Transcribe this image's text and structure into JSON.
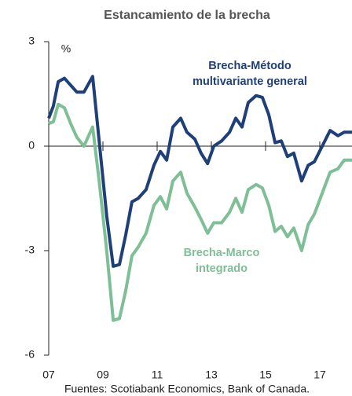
{
  "chart_data": {
    "type": "line",
    "title": "Estancamiento de la brecha",
    "y_unit": "%",
    "source": "Fuentes: Scotiabank Economics, Bank of Canada.",
    "x": [
      2007.0,
      2007.17,
      2007.35,
      2007.58,
      2007.81,
      2008.04,
      2008.3,
      2008.62,
      2008.86,
      2009.14,
      2009.38,
      2009.61,
      2009.84,
      2010.07,
      2010.3,
      2010.59,
      2010.88,
      2011.12,
      2011.35,
      2011.58,
      2011.87,
      2012.1,
      2012.39,
      2012.62,
      2012.86,
      2013.09,
      2013.38,
      2013.67,
      2013.9,
      2014.13,
      2014.36,
      2014.65,
      2014.88,
      2015.12,
      2015.35,
      2015.58,
      2015.81,
      2016.04,
      2016.33,
      2016.57,
      2016.8,
      2017.09,
      2017.38,
      2017.67,
      2017.9,
      2018.19
    ],
    "series": [
      {
        "name": "Brecha-Método multivariante general",
        "name_lines": [
          "Brecha-Método",
          "multivariante general"
        ],
        "color": "#1f3f78",
        "values": [
          0.8,
          1.15,
          1.85,
          1.95,
          1.75,
          1.55,
          1.55,
          2.0,
          0.15,
          -2.0,
          -3.45,
          -3.4,
          -2.55,
          -1.6,
          -1.5,
          -1.25,
          -0.55,
          -0.15,
          -0.4,
          0.55,
          0.8,
          0.4,
          0.2,
          -0.2,
          -0.5,
          0.0,
          0.15,
          0.4,
          0.8,
          0.55,
          1.25,
          1.45,
          1.4,
          0.9,
          0.1,
          0.15,
          -0.3,
          -0.2,
          -1.0,
          -0.55,
          -0.45,
          0.0,
          0.45,
          0.3,
          0.4,
          0.4
        ]
      },
      {
        "name": "Brecha-Marco integrado",
        "name_lines": [
          "Brecha-Marco",
          "integrado"
        ],
        "color": "#7fbf96",
        "values": [
          0.65,
          0.7,
          1.2,
          1.1,
          0.65,
          0.25,
          0.0,
          0.55,
          -1.0,
          -3.0,
          -5.0,
          -4.95,
          -4.15,
          -3.15,
          -2.9,
          -2.5,
          -1.7,
          -1.45,
          -1.8,
          -1.0,
          -0.75,
          -1.35,
          -1.75,
          -2.1,
          -2.5,
          -2.2,
          -2.2,
          -1.9,
          -1.5,
          -1.9,
          -1.25,
          -1.1,
          -1.2,
          -1.7,
          -2.45,
          -2.3,
          -2.6,
          -2.35,
          -3.0,
          -2.25,
          -1.95,
          -1.35,
          -0.75,
          -0.65,
          -0.4,
          -0.4
        ]
      }
    ],
    "xlim": [
      2007,
      2018.2
    ],
    "xticks": [
      {
        "value": 2007,
        "label": "07"
      },
      {
        "value": 2009,
        "label": "09"
      },
      {
        "value": 2011,
        "label": "11"
      },
      {
        "value": 2013,
        "label": "13"
      },
      {
        "value": 2015,
        "label": "15"
      },
      {
        "value": 2017,
        "label": "17"
      }
    ],
    "ylim": [
      -6,
      3
    ],
    "yticks": [
      3,
      0,
      -3,
      -6
    ]
  }
}
